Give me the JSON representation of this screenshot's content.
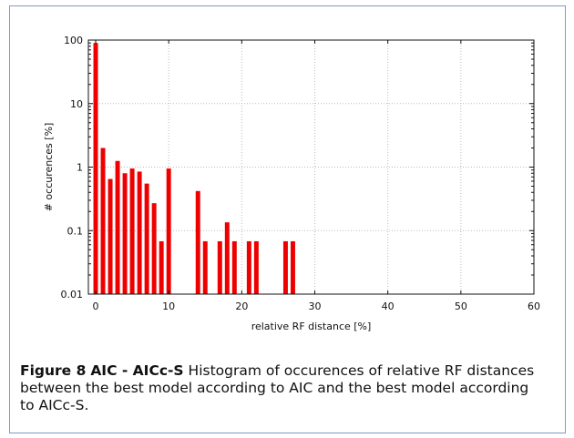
{
  "chart_data": {
    "type": "bar",
    "xlabel": "relative RF distance [%]",
    "ylabel": "# occurences [%]",
    "xlim": [
      -1,
      60
    ],
    "ylim": [
      0.01,
      100
    ],
    "yscale": "log",
    "grid": true,
    "xticks": [
      0,
      10,
      20,
      30,
      40,
      50,
      60
    ],
    "yticks": [
      0.01,
      0.1,
      1,
      10,
      100
    ],
    "ytick_labels": [
      "0.01",
      "0.1",
      "1",
      "10",
      "100"
    ],
    "bar_color": "#ee0000",
    "x": [
      0,
      1,
      2,
      3,
      4,
      5,
      6,
      7,
      8,
      9,
      10,
      14,
      15,
      17,
      18,
      19,
      21,
      22,
      26,
      27
    ],
    "values": [
      90,
      2.0,
      0.65,
      1.25,
      0.8,
      0.95,
      0.85,
      0.55,
      0.27,
      0.068,
      0.95,
      0.42,
      0.068,
      0.068,
      0.135,
      0.068,
      0.068,
      0.068,
      0.068,
      0.068
    ]
  },
  "caption": {
    "label": "Figure 8",
    "title": "AIC - AICc-S",
    "text": "Histogram of occurences of relative RF distances between the best model according to AIC and the best model according to AICc-S."
  }
}
